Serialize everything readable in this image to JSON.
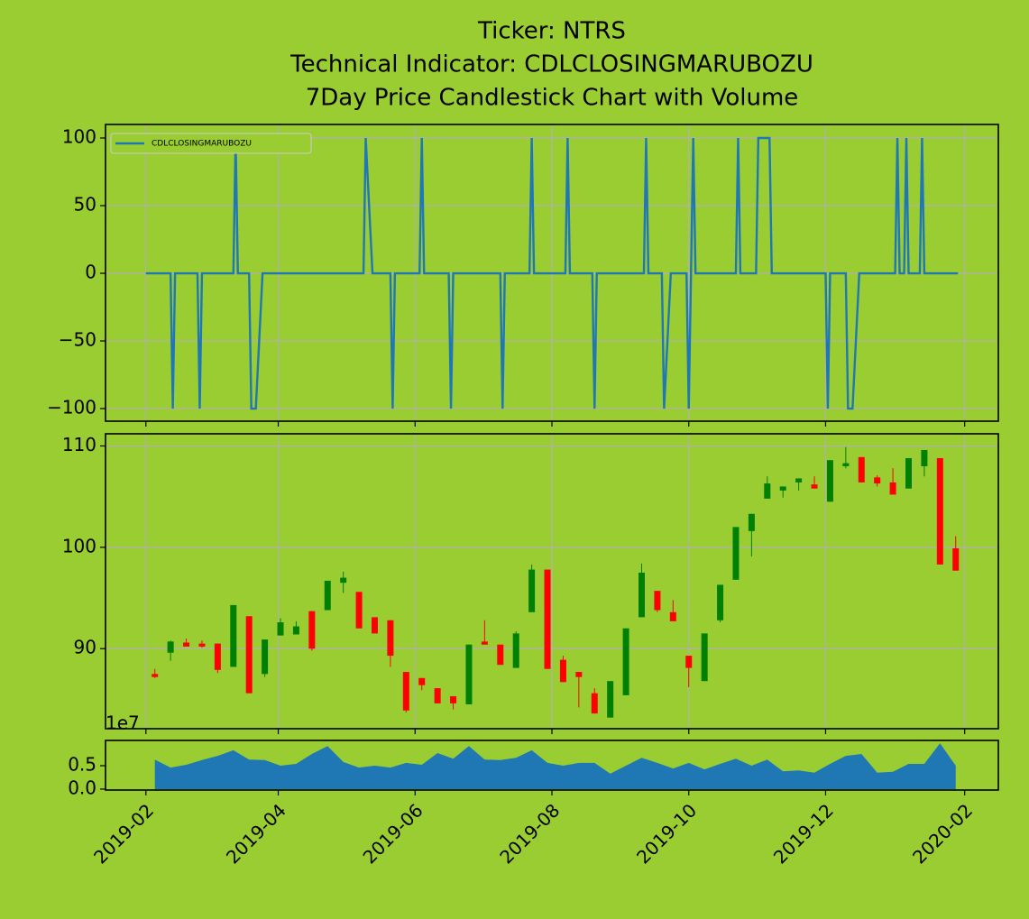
{
  "chart_data": [
    {
      "type": "line",
      "title": [
        "Ticker: NTRS",
        "Technical Indicator: CDLCLOSINGMARUBOZU",
        "7Day Price Candlestick Chart with Volume"
      ],
      "legend": "upper left",
      "grid": true,
      "xlim": [
        "2019-01-14",
        "2020-02-16"
      ],
      "xticks": [
        "2019-02",
        "2019-04",
        "2019-06",
        "2019-08",
        "2019-10",
        "2019-12",
        "2020-02"
      ],
      "ylim": [
        -109.3,
        110
      ],
      "yticks": [
        {
          "value": -100,
          "label": "−100"
        },
        {
          "value": -50,
          "label": "−50"
        },
        0,
        50,
        100
      ],
      "x": [
        "2019-02-01",
        "2019-02-12",
        "2019-02-13",
        "2019-02-14",
        "2019-02-24",
        "2019-02-25",
        "2019-02-26",
        "2019-03-12",
        "2019-03-13",
        "2019-03-14",
        "2019-03-19",
        "2019-03-20",
        "2019-03-22",
        "2019-03-25",
        "2019-05-09",
        "2019-05-10",
        "2019-05-13",
        "2019-05-21",
        "2019-05-22",
        "2019-05-23",
        "2019-06-03",
        "2019-06-04",
        "2019-06-05",
        "2019-06-16",
        "2019-06-17",
        "2019-06-18",
        "2019-07-09",
        "2019-07-10",
        "2019-07-11",
        "2019-07-22",
        "2019-07-23",
        "2019-07-24",
        "2019-08-07",
        "2019-08-08",
        "2019-08-09",
        "2019-08-19",
        "2019-08-20",
        "2019-08-21",
        "2019-09-11",
        "2019-09-12",
        "2019-09-13",
        "2019-09-19",
        "2019-09-20",
        "2019-09-23",
        "2019-09-30",
        "2019-10-01",
        "2019-10-03",
        "2019-10-04",
        "2019-10-22",
        "2019-10-23",
        "2019-10-24",
        "2019-10-31",
        "2019-11-01",
        "2019-11-06",
        "2019-11-07",
        "2019-12-01",
        "2019-12-02",
        "2019-12-03",
        "2019-12-10",
        "2019-12-11",
        "2019-12-13",
        "2019-12-16",
        "2020-01-01",
        "2020-01-02",
        "2020-01-03",
        "2020-01-05",
        "2020-01-06",
        "2020-01-07",
        "2020-01-12",
        "2020-01-13",
        "2020-01-14",
        "2020-01-29"
      ],
      "series": [
        {
          "name": "CDLCLOSINGMARUBOZU",
          "color": "#1f77b4",
          "values": [
            0,
            0,
            -100,
            0,
            0,
            -100,
            0,
            0,
            100,
            0,
            0,
            -100,
            -100,
            0,
            0,
            100,
            0,
            0,
            -100,
            0,
            0,
            100,
            0,
            0,
            -100,
            0,
            0,
            -100,
            0,
            0,
            100,
            0,
            0,
            100,
            0,
            0,
            -100,
            0,
            0,
            100,
            0,
            0,
            -100,
            0,
            0,
            -100,
            100,
            0,
            0,
            100,
            0,
            0,
            100,
            100,
            0,
            0,
            -100,
            0,
            0,
            -100,
            -100,
            0,
            0,
            100,
            0,
            0,
            100,
            0,
            0,
            100,
            0,
            0
          ]
        }
      ]
    },
    {
      "type": "candlestick",
      "grid": true,
      "up_color": "green",
      "down_color": "red",
      "xlim": [
        "2019-01-14",
        "2020-02-16"
      ],
      "xticks": [
        "2019-02",
        "2019-04",
        "2019-06",
        "2019-08",
        "2019-10",
        "2019-12",
        "2020-02"
      ],
      "ylim": [
        82.1,
        111.2
      ],
      "yticks": [
        90,
        100,
        110
      ],
      "x": [
        "2019-02-05",
        "2019-02-12",
        "2019-02-19",
        "2019-02-26",
        "2019-03-05",
        "2019-03-12",
        "2019-03-19",
        "2019-03-26",
        "2019-04-02",
        "2019-04-09",
        "2019-04-16",
        "2019-04-23",
        "2019-04-30",
        "2019-05-07",
        "2019-05-14",
        "2019-05-21",
        "2019-05-28",
        "2019-06-04",
        "2019-06-11",
        "2019-06-18",
        "2019-06-25",
        "2019-07-02",
        "2019-07-09",
        "2019-07-16",
        "2019-07-23",
        "2019-07-30",
        "2019-08-06",
        "2019-08-13",
        "2019-08-20",
        "2019-08-27",
        "2019-09-03",
        "2019-09-10",
        "2019-09-17",
        "2019-09-24",
        "2019-10-01",
        "2019-10-08",
        "2019-10-15",
        "2019-10-22",
        "2019-10-29",
        "2019-11-05",
        "2019-11-12",
        "2019-11-19",
        "2019-11-26",
        "2019-12-03",
        "2019-12-10",
        "2019-12-17",
        "2019-12-24",
        "2019-12-31",
        "2020-01-07",
        "2020-01-14",
        "2020-01-21",
        "2020-01-28"
      ],
      "open": [
        87.5,
        89.6,
        90.6,
        90.5,
        90.5,
        88.2,
        93.2,
        87.5,
        91.3,
        91.4,
        93.7,
        93.8,
        96.5,
        95.6,
        93.1,
        92.8,
        87.7,
        87.1,
        86.1,
        85.3,
        84.5,
        90.7,
        90.4,
        88.1,
        93.6,
        97.8,
        88.9,
        87.7,
        85.6,
        83.2,
        85.4,
        93.1,
        95.7,
        93.6,
        89.3,
        86.8,
        92.8,
        96.8,
        101.6,
        104.8,
        105.6,
        106.4,
        106.2,
        104.5,
        108.0,
        108.9,
        106.9,
        106.4,
        105.8,
        108.0,
        108.8,
        99.9
      ],
      "high": [
        88.0,
        90.8,
        91.0,
        90.8,
        90.5,
        94.3,
        93.2,
        90.9,
        93.0,
        92.7,
        93.7,
        96.7,
        97.6,
        95.6,
        93.1,
        92.8,
        87.7,
        87.1,
        86.1,
        85.3,
        90.4,
        92.8,
        90.4,
        91.7,
        98.3,
        97.8,
        89.3,
        87.7,
        86.1,
        86.8,
        92.0,
        98.4,
        95.7,
        94.8,
        89.3,
        91.5,
        96.3,
        102.0,
        103.3,
        107.0,
        106.0,
        106.8,
        107.0,
        108.6,
        109.9,
        108.9,
        107.1,
        107.8,
        108.8,
        109.6,
        108.8,
        101.1
      ],
      "low": [
        87.1,
        88.8,
        90.2,
        90.1,
        87.6,
        88.2,
        85.6,
        87.2,
        91.3,
        91.4,
        89.8,
        93.8,
        95.5,
        92.0,
        91.5,
        88.2,
        83.7,
        85.9,
        84.6,
        84.0,
        84.5,
        90.4,
        88.4,
        88.1,
        93.6,
        88.0,
        86.7,
        84.2,
        83.6,
        83.2,
        85.4,
        93.1,
        93.6,
        92.7,
        86.2,
        86.8,
        92.6,
        96.8,
        99.1,
        104.8,
        104.9,
        105.6,
        105.8,
        104.5,
        107.8,
        106.4,
        106.0,
        105.2,
        105.8,
        107.0,
        98.3,
        97.7
      ],
      "close": [
        87.2,
        90.7,
        90.2,
        90.2,
        87.9,
        94.3,
        85.6,
        90.9,
        92.6,
        92.2,
        90.0,
        96.7,
        97.0,
        92.0,
        91.5,
        89.3,
        83.9,
        86.4,
        84.6,
        84.6,
        90.4,
        90.4,
        88.4,
        91.5,
        97.8,
        88.0,
        86.7,
        87.2,
        83.6,
        86.8,
        92.0,
        97.5,
        93.8,
        92.7,
        88.1,
        91.5,
        96.3,
        102.0,
        103.3,
        106.3,
        106.0,
        106.8,
        105.8,
        108.6,
        108.3,
        106.4,
        106.3,
        105.2,
        108.8,
        109.6,
        98.3,
        97.7
      ]
    },
    {
      "type": "area",
      "color": "#1f77b4",
      "offset_label": "1e7",
      "xlim": [
        "2019-01-14",
        "2020-02-16"
      ],
      "xticks": [
        "2019-02",
        "2019-04",
        "2019-06",
        "2019-08",
        "2019-10",
        "2019-12",
        "2020-02"
      ],
      "ylim": [
        -0.02,
        1.04
      ],
      "yticks": [
        {
          "value": 0,
          "label": "0.0"
        },
        0.5
      ],
      "x": [
        "2019-02-05",
        "2019-02-12",
        "2019-02-19",
        "2019-02-26",
        "2019-03-05",
        "2019-03-12",
        "2019-03-19",
        "2019-03-26",
        "2019-04-02",
        "2019-04-09",
        "2019-04-16",
        "2019-04-23",
        "2019-04-30",
        "2019-05-07",
        "2019-05-14",
        "2019-05-21",
        "2019-05-28",
        "2019-06-04",
        "2019-06-11",
        "2019-06-18",
        "2019-06-25",
        "2019-07-02",
        "2019-07-09",
        "2019-07-16",
        "2019-07-23",
        "2019-07-30",
        "2019-08-06",
        "2019-08-13",
        "2019-08-20",
        "2019-08-27",
        "2019-09-03",
        "2019-09-10",
        "2019-09-17",
        "2019-09-24",
        "2019-10-01",
        "2019-10-08",
        "2019-10-15",
        "2019-10-22",
        "2019-10-29",
        "2019-11-05",
        "2019-11-12",
        "2019-11-19",
        "2019-11-26",
        "2019-12-03",
        "2019-12-10",
        "2019-12-17",
        "2019-12-24",
        "2019-12-31",
        "2020-01-07",
        "2020-01-14",
        "2020-01-21",
        "2020-01-28"
      ],
      "values": [
        0.63,
        0.46,
        0.52,
        0.62,
        0.71,
        0.83,
        0.63,
        0.62,
        0.5,
        0.54,
        0.75,
        0.92,
        0.58,
        0.46,
        0.5,
        0.46,
        0.56,
        0.52,
        0.77,
        0.65,
        0.92,
        0.63,
        0.62,
        0.67,
        0.83,
        0.56,
        0.5,
        0.56,
        0.56,
        0.33,
        0.5,
        0.67,
        0.56,
        0.44,
        0.56,
        0.42,
        0.54,
        0.65,
        0.5,
        0.63,
        0.38,
        0.4,
        0.35,
        0.54,
        0.71,
        0.75,
        0.35,
        0.37,
        0.54,
        0.54,
        0.98,
        0.5
      ]
    }
  ]
}
